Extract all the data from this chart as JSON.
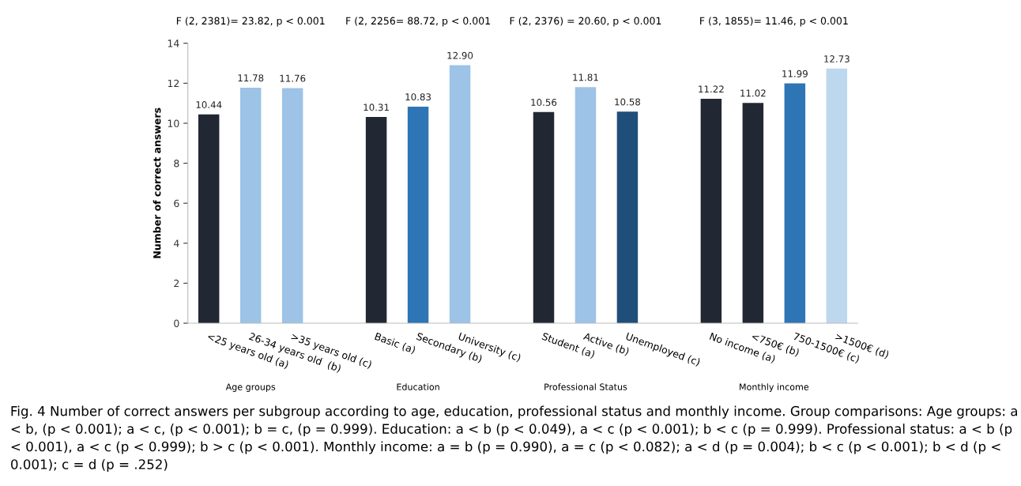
{
  "chart_data": {
    "type": "bar",
    "ylabel": "Number of correct answers",
    "categories": [
      "<25 years old (a)",
      "26-34 years old  (b)",
      ">35 years old (c)",
      null,
      "Basic (a)",
      "Secondary (b)",
      "University (c)",
      null,
      "Student (a)",
      "Active (b)",
      "Unemployed (c)",
      null,
      "No income (a)",
      "<750€ (b)",
      "750-1500€ (c)",
      ">1500€ (d)"
    ],
    "values": [
      10.44,
      11.78,
      11.76,
      null,
      10.31,
      10.83,
      12.9,
      null,
      10.56,
      11.81,
      10.58,
      null,
      11.22,
      11.02,
      11.99,
      12.73
    ],
    "value_labels": [
      "10.44",
      "11.78",
      "11.76",
      null,
      "10.31",
      "10.83",
      "12.90",
      null,
      "10.56",
      "11.81",
      "10.58",
      null,
      "11.22",
      "11.02",
      "11.99",
      "12.73"
    ],
    "colors": [
      "#222833",
      "#9dc3e6",
      "#9dc3e6",
      null,
      "#222833",
      "#2e75b6",
      "#9dc3e6",
      null,
      "#222833",
      "#9dc3e6",
      "#1f4e79",
      null,
      "#222833",
      "#222833",
      "#2e75b6",
      "#bdd7ee"
    ],
    "ylim": [
      0,
      14
    ],
    "yticks": [
      0,
      2,
      4,
      6,
      8,
      10,
      12,
      14
    ],
    "grid": false,
    "legend": false,
    "annotations": [
      "F (2, 2381)= 23.82, p < 0.001",
      "F (2, 2256= 88.72, p < 0.001",
      "F (2, 2376) = 20.60, p < 0.001",
      "F (3, 1855)= 11.46, p < 0.001",
      "Age groups",
      "Education",
      "Professional Status",
      "Monthly income",
      "Fig. 4 Number of correct answers per subgroup according to age, education, professional status and monthly income. Group comparisons: Age groups: a < b, (p < 0.001); a < c, (p < 0.001); b = c, (p = 0.999). Education: a < b (p < 0.049), a < c (p < 0.001); b < c (p = 0.999). Professional status: a < b (p < 0.001), a < c (p < 0.999); b > c (p < 0.001). Monthly income: a = b (p = 0.990), a = c (p < 0.082); a < d (p = 0.004); b < c (p < 0.001); b < d (p < 0.001); c = d (p = .252)"
    ]
  }
}
